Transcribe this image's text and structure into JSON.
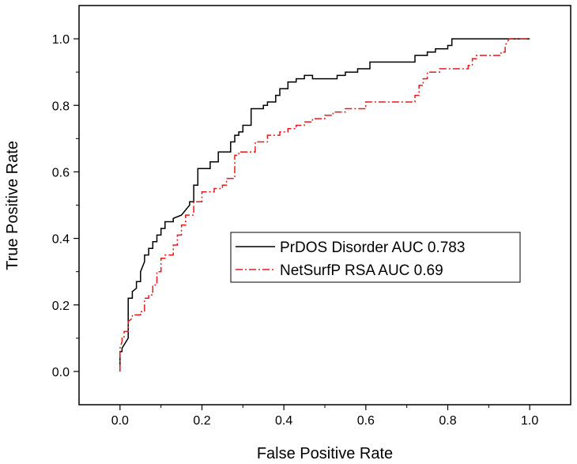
{
  "chart_data": {
    "type": "line",
    "title": "",
    "xlabel": "False Positive Rate",
    "ylabel": "True Positive Rate",
    "xlim": [
      -0.1,
      1.1
    ],
    "ylim": [
      -0.1,
      1.1
    ],
    "xticks": [
      "0.0",
      "0.2",
      "0.4",
      "0.6",
      "0.8",
      "1.0"
    ],
    "yticks": [
      "0.0",
      "0.2",
      "0.4",
      "0.6",
      "0.8",
      "1.0"
    ],
    "grid": false,
    "legend_position": "center-right",
    "series": [
      {
        "name": "PrDOS Disorder AUC 0.783",
        "color": "#000000",
        "line_style": "solid",
        "x": [
          0.0,
          0.0,
          0.005,
          0.005,
          0.02,
          0.02,
          0.03,
          0.03,
          0.04,
          0.04,
          0.05,
          0.05,
          0.06,
          0.06,
          0.07,
          0.07,
          0.08,
          0.08,
          0.09,
          0.09,
          0.1,
          0.1,
          0.11,
          0.11,
          0.13,
          0.13,
          0.15,
          0.17,
          0.17,
          0.18,
          0.18,
          0.19,
          0.19,
          0.22,
          0.22,
          0.24,
          0.24,
          0.27,
          0.27,
          0.28,
          0.28,
          0.29,
          0.29,
          0.3,
          0.3,
          0.32,
          0.32,
          0.35,
          0.35,
          0.36,
          0.36,
          0.38,
          0.38,
          0.39,
          0.39,
          0.41,
          0.41,
          0.43,
          0.43,
          0.45,
          0.45,
          0.47,
          0.47,
          0.53,
          0.53,
          0.55,
          0.55,
          0.58,
          0.58,
          0.61,
          0.61,
          0.63,
          0.63,
          0.72,
          0.72,
          0.75,
          0.75,
          0.77,
          0.77,
          0.8,
          0.8,
          0.81,
          0.81,
          1.0
        ],
        "y": [
          0.0,
          0.06,
          0.06,
          0.07,
          0.1,
          0.22,
          0.22,
          0.24,
          0.25,
          0.27,
          0.27,
          0.3,
          0.33,
          0.35,
          0.35,
          0.37,
          0.37,
          0.39,
          0.39,
          0.41,
          0.41,
          0.43,
          0.43,
          0.45,
          0.45,
          0.46,
          0.47,
          0.5,
          0.51,
          0.51,
          0.56,
          0.56,
          0.61,
          0.61,
          0.63,
          0.63,
          0.66,
          0.66,
          0.69,
          0.69,
          0.71,
          0.71,
          0.72,
          0.72,
          0.74,
          0.74,
          0.79,
          0.79,
          0.8,
          0.8,
          0.81,
          0.81,
          0.83,
          0.83,
          0.85,
          0.85,
          0.87,
          0.87,
          0.88,
          0.88,
          0.89,
          0.89,
          0.88,
          0.88,
          0.89,
          0.89,
          0.9,
          0.9,
          0.91,
          0.91,
          0.93,
          0.93,
          0.93,
          0.93,
          0.95,
          0.95,
          0.96,
          0.96,
          0.97,
          0.97,
          0.98,
          0.98,
          1.0,
          1.0
        ]
      },
      {
        "name": "NetSurfP RSA AUC 0.69",
        "color": "#e8181c",
        "line_style": "dash-dot",
        "x": [
          0.0,
          0.0,
          0.005,
          0.005,
          0.01,
          0.01,
          0.02,
          0.02,
          0.03,
          0.03,
          0.05,
          0.05,
          0.06,
          0.06,
          0.07,
          0.07,
          0.08,
          0.08,
          0.09,
          0.09,
          0.1,
          0.1,
          0.11,
          0.11,
          0.13,
          0.13,
          0.14,
          0.14,
          0.15,
          0.15,
          0.16,
          0.16,
          0.18,
          0.18,
          0.2,
          0.2,
          0.23,
          0.23,
          0.25,
          0.25,
          0.26,
          0.26,
          0.28,
          0.28,
          0.29,
          0.29,
          0.33,
          0.33,
          0.36,
          0.36,
          0.39,
          0.39,
          0.41,
          0.41,
          0.43,
          0.43,
          0.45,
          0.45,
          0.47,
          0.47,
          0.5,
          0.5,
          0.52,
          0.52,
          0.55,
          0.55,
          0.6,
          0.6,
          0.65,
          0.65,
          0.72,
          0.72,
          0.73,
          0.73,
          0.74,
          0.74,
          0.75,
          0.75,
          0.78,
          0.78,
          0.85,
          0.85,
          0.86,
          0.86,
          0.87,
          0.87,
          0.93,
          0.93,
          0.94,
          0.94,
          0.95,
          1.0
        ],
        "y": [
          0.0,
          0.07,
          0.09,
          0.1,
          0.1,
          0.12,
          0.12,
          0.15,
          0.16,
          0.17,
          0.17,
          0.18,
          0.18,
          0.22,
          0.22,
          0.23,
          0.23,
          0.26,
          0.26,
          0.3,
          0.3,
          0.34,
          0.34,
          0.35,
          0.35,
          0.38,
          0.38,
          0.41,
          0.41,
          0.44,
          0.44,
          0.47,
          0.47,
          0.51,
          0.51,
          0.54,
          0.54,
          0.55,
          0.55,
          0.56,
          0.56,
          0.58,
          0.58,
          0.65,
          0.65,
          0.66,
          0.66,
          0.69,
          0.69,
          0.71,
          0.71,
          0.72,
          0.72,
          0.73,
          0.73,
          0.74,
          0.74,
          0.75,
          0.75,
          0.76,
          0.76,
          0.77,
          0.77,
          0.78,
          0.78,
          0.79,
          0.79,
          0.81,
          0.81,
          0.81,
          0.81,
          0.83,
          0.83,
          0.86,
          0.86,
          0.88,
          0.88,
          0.9,
          0.9,
          0.91,
          0.91,
          0.92,
          0.92,
          0.94,
          0.94,
          0.95,
          0.95,
          0.96,
          0.96,
          0.98,
          1.0,
          1.0
        ]
      }
    ]
  }
}
